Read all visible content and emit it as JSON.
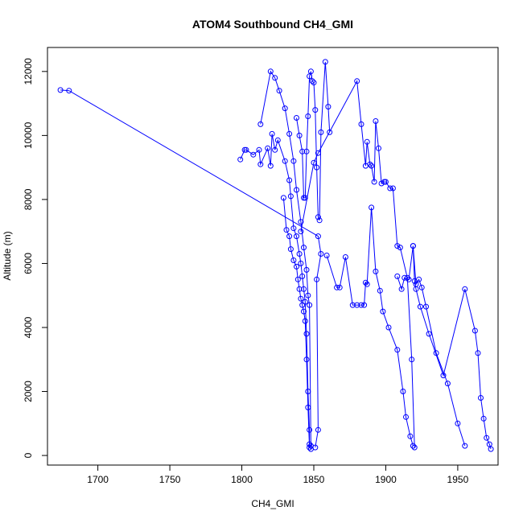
{
  "chart_data": {
    "type": "line",
    "title": "ATOM4 Southbound CH4_GMI",
    "xlabel": "CH4_GMI",
    "ylabel": "Altitude (m)",
    "xlim": [
      1665,
      1978
    ],
    "ylim": [
      -300,
      12750
    ],
    "x_ticks": [
      1700,
      1750,
      1800,
      1850,
      1900,
      1950
    ],
    "y_ticks": [
      0,
      2000,
      4000,
      6000,
      8000,
      10000,
      12000
    ],
    "grid": false,
    "legend": "none",
    "color": "#0000ff",
    "marker": "open-circle",
    "series": [
      {
        "x": [
          1674,
          1680,
          1853,
          1855,
          1852,
          1853,
          1851
        ],
        "y": [
          11420,
          11400,
          6850,
          6300,
          5500,
          800,
          250
        ]
      },
      {
        "x": [
          1799,
          1802,
          1803,
          1808,
          1812,
          1813,
          1818,
          1820,
          1821,
          1823,
          1825,
          1830,
          1833,
          1834,
          1836,
          1838,
          1840,
          1841,
          1842,
          1843,
          1844,
          1845,
          1846,
          1847,
          1847,
          1848
        ],
        "y": [
          9250,
          9550,
          9550,
          9400,
          9550,
          9100,
          9600,
          9050,
          10050,
          9550,
          9850,
          9200,
          8600,
          8100,
          7100,
          6850,
          6300,
          6000,
          5600,
          5200,
          4800,
          3800,
          2000,
          800,
          350,
          200
        ]
      },
      {
        "x": [
          1813,
          1820,
          1823,
          1826,
          1830,
          1833,
          1836,
          1838,
          1841,
          1843,
          1845,
          1846,
          1847,
          1848
        ],
        "y": [
          10350,
          12000,
          11800,
          11400,
          10850,
          10050,
          9200,
          8300,
          7300,
          6500,
          5800,
          5000,
          4700,
          300
        ]
      },
      {
        "x": [
          1829,
          1831,
          1833,
          1834,
          1836,
          1838,
          1839,
          1840,
          1841,
          1842,
          1843,
          1844,
          1845,
          1846,
          1847
        ],
        "y": [
          8050,
          7050,
          6850,
          6450,
          6100,
          5900,
          5500,
          5200,
          4900,
          4700,
          4500,
          4200,
          3000,
          1500,
          250
        ]
      },
      {
        "x": [
          1838,
          1840,
          1842,
          1843,
          1844,
          1845,
          1846,
          1847,
          1848,
          1849,
          1850,
          1851,
          1852,
          1853,
          1854,
          1855,
          1858,
          1860,
          1861
        ],
        "y": [
          10550,
          10000,
          9500,
          8050,
          8050,
          9500,
          10600,
          11850,
          12000,
          11700,
          11650,
          10800,
          9000,
          7450,
          7350,
          10100,
          12300,
          10900,
          10100
        ]
      },
      {
        "x": [
          1841,
          1850,
          1853,
          1880,
          1883,
          1886,
          1887,
          1889,
          1890,
          1892,
          1893,
          1895,
          1897,
          1899,
          1900,
          1903,
          1905,
          1908,
          1910,
          1915,
          1918,
          1920
        ],
        "y": [
          7000,
          9150,
          9450,
          11700,
          10350,
          9050,
          9800,
          9100,
          9050,
          8550,
          10450,
          9600,
          8500,
          8550,
          8550,
          8350,
          8350,
          6550,
          6500,
          5550,
          3000,
          250
        ]
      },
      {
        "x": [
          1859,
          1866,
          1868,
          1872,
          1877,
          1880,
          1883,
          1885,
          1886,
          1887,
          1890,
          1893,
          1896,
          1898,
          1902,
          1908,
          1912,
          1914,
          1917,
          1919
        ],
        "y": [
          6250,
          5250,
          5250,
          6200,
          4700,
          4700,
          4700,
          4700,
          5400,
          5350,
          7750,
          5750,
          5150,
          4500,
          4000,
          3300,
          2000,
          1200,
          600,
          300
        ]
      },
      {
        "x": [
          1908,
          1911,
          1913,
          1916,
          1919,
          1921,
          1923,
          1925,
          1928,
          1935,
          1943,
          1950,
          1955
        ],
        "y": [
          5600,
          5200,
          5550,
          5500,
          6550,
          5350,
          5500,
          5250,
          4650,
          3200,
          2250,
          1000,
          300
        ]
      },
      {
        "x": [
          1919,
          1920,
          1921,
          1924,
          1930,
          1940,
          1955,
          1962,
          1964,
          1966,
          1968,
          1970,
          1972,
          1973
        ],
        "y": [
          6550,
          5450,
          5200,
          4650,
          3800,
          2500,
          5200,
          3900,
          3200,
          1800,
          1150,
          550,
          350,
          200
        ]
      }
    ]
  }
}
